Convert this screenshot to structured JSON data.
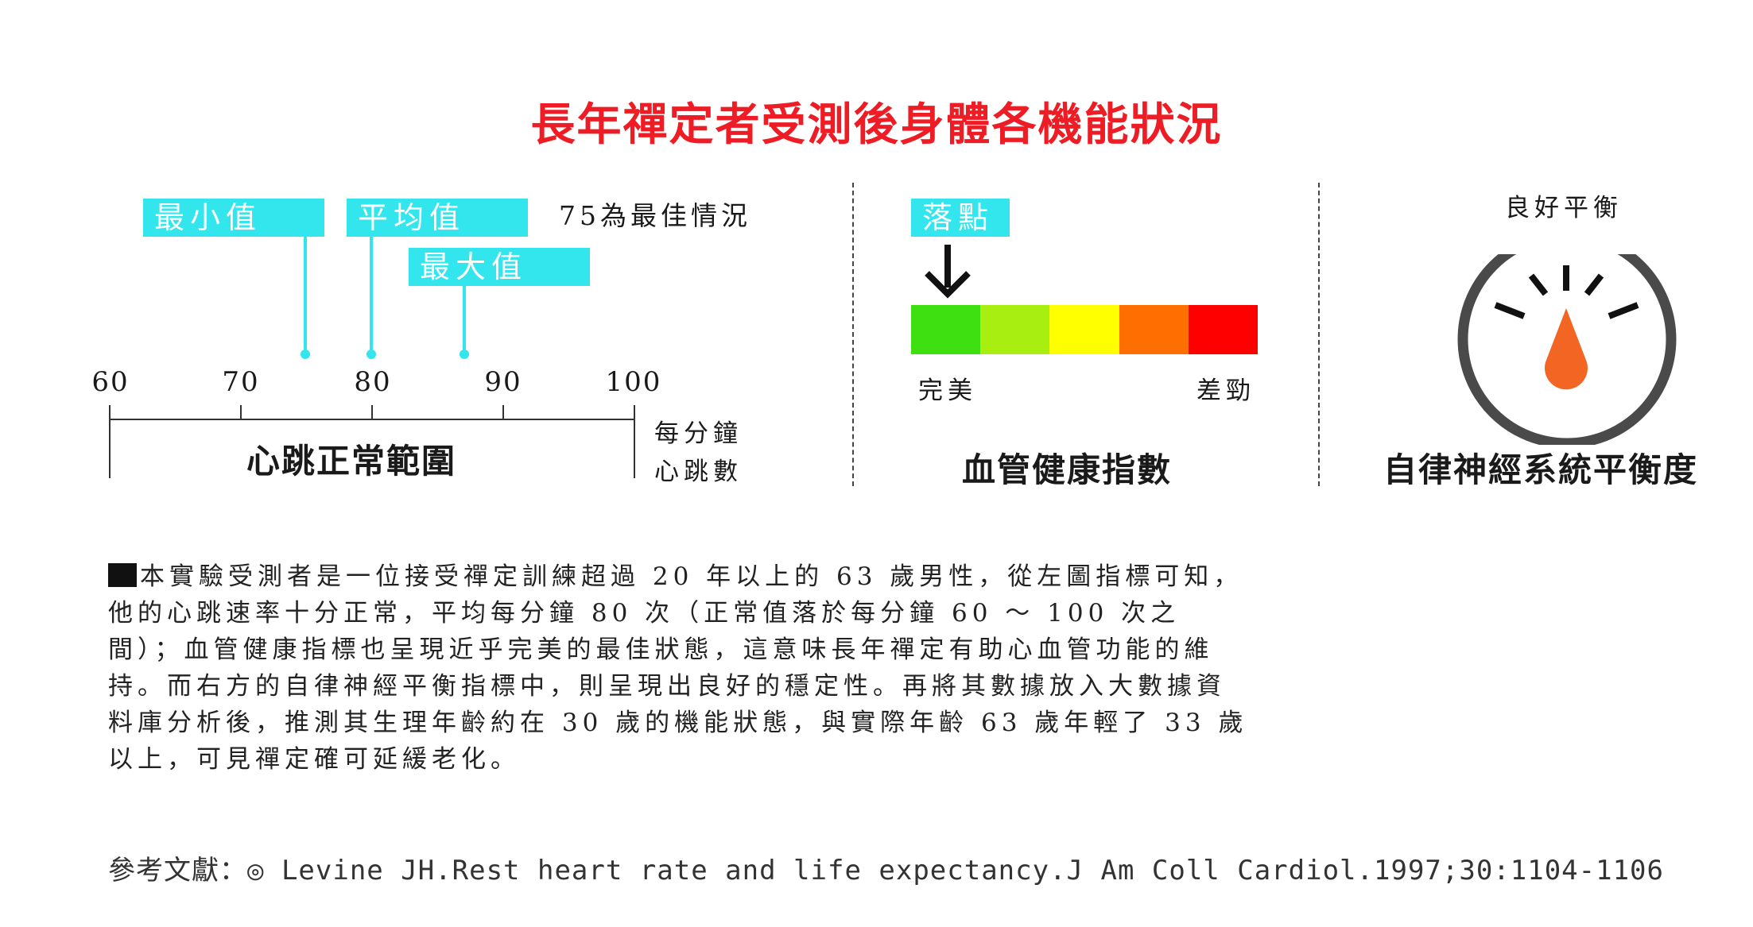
{
  "title": "長年禪定者受測後身體各機能狀況",
  "heart_rate": {
    "min_tag": "最小值 75",
    "avg_tag": "平均值 80",
    "max_tag": "最大值 87",
    "best_note": "75為最佳情況",
    "ticks": [
      "60",
      "70",
      "80",
      "90",
      "100"
    ],
    "range_label": "心跳正常範圍",
    "unit_line1": "每分鐘",
    "unit_line2": "心跳數",
    "axis_min": 60,
    "axis_max": 100,
    "markers": [
      75,
      80,
      87
    ]
  },
  "vascular": {
    "tag": "落點",
    "left_label": "完美",
    "right_label": "差勁",
    "title": "血管健康指數",
    "segment_colors": [
      "#3fe012",
      "#a8ee10",
      "#ffff00",
      "#ff6e00",
      "#ff0000"
    ]
  },
  "autonomic": {
    "gauge_label": "良好平衡",
    "title": "自律神經系統平衡度",
    "needle_color": "#f26522"
  },
  "paragraph": "本實驗受測者是一位接受禪定訓練超過 20 年以上的 63 歲男性，從左圖指標可知，他的心跳速率十分正常，平均每分鐘 80 次（正常值落於每分鐘 60 ～ 100 次之間）；血管健康指標也呈現近乎完美的最佳狀態，這意味長年禪定有助心血管功能的維持。而右方的自律神經平衡指標中，則呈現出良好的穩定性。再將其數據放入大數據資料庫分析後，推測其生理年齡約在 30 歲的機能狀態，與實際年齡 63 歲年輕了 33 歲以上，可見禪定確可延緩老化。",
  "reference": "參考文獻：◎ Levine JH.Rest heart rate and life expectancy.J Am Coll Cardiol.1997;30:1104-1106"
}
